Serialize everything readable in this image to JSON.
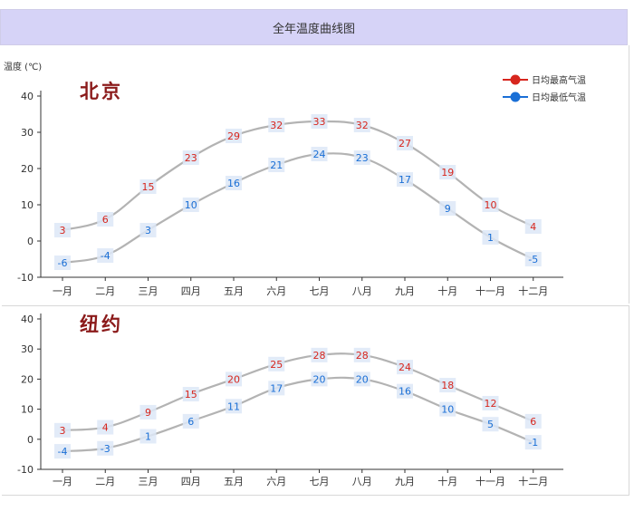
{
  "title": "全年温度曲线图",
  "chart_data": [
    {
      "type": "line",
      "city": "北京",
      "ylabel": "温度 (℃)",
      "ylim": [
        -10,
        40
      ],
      "yticks": [
        -10,
        0,
        10,
        20,
        30,
        40
      ],
      "categories": [
        "一月",
        "二月",
        "三月",
        "四月",
        "五月",
        "六月",
        "七月",
        "八月",
        "九月",
        "十月",
        "十一月",
        "十二月"
      ],
      "series": [
        {
          "name": "日均最高气温",
          "color": "#d7261e",
          "values": [
            3,
            6,
            15,
            23,
            29,
            32,
            33,
            32,
            27,
            19,
            10,
            4
          ]
        },
        {
          "name": "日均最低气温",
          "color": "#1a6fd6",
          "values": [
            -6,
            -4,
            3,
            10,
            16,
            21,
            24,
            23,
            17,
            9,
            1,
            -5
          ]
        }
      ],
      "legend": "top-right"
    },
    {
      "type": "line",
      "city": "纽约",
      "ylim": [
        -10,
        40
      ],
      "yticks": [
        -10,
        0,
        10,
        20,
        30,
        40
      ],
      "categories": [
        "一月",
        "二月",
        "三月",
        "四月",
        "五月",
        "六月",
        "七月",
        "八月",
        "九月",
        "十月",
        "十一月",
        "十二月"
      ],
      "series": [
        {
          "name": "日均最高气温",
          "color": "#d7261e",
          "values": [
            3,
            4,
            9,
            15,
            20,
            25,
            28,
            28,
            24,
            18,
            12,
            6
          ]
        },
        {
          "name": "日均最低气温",
          "color": "#1a6fd6",
          "values": [
            -4,
            -3,
            1,
            6,
            11,
            17,
            20,
            20,
            16,
            10,
            5,
            -1
          ]
        }
      ]
    }
  ]
}
